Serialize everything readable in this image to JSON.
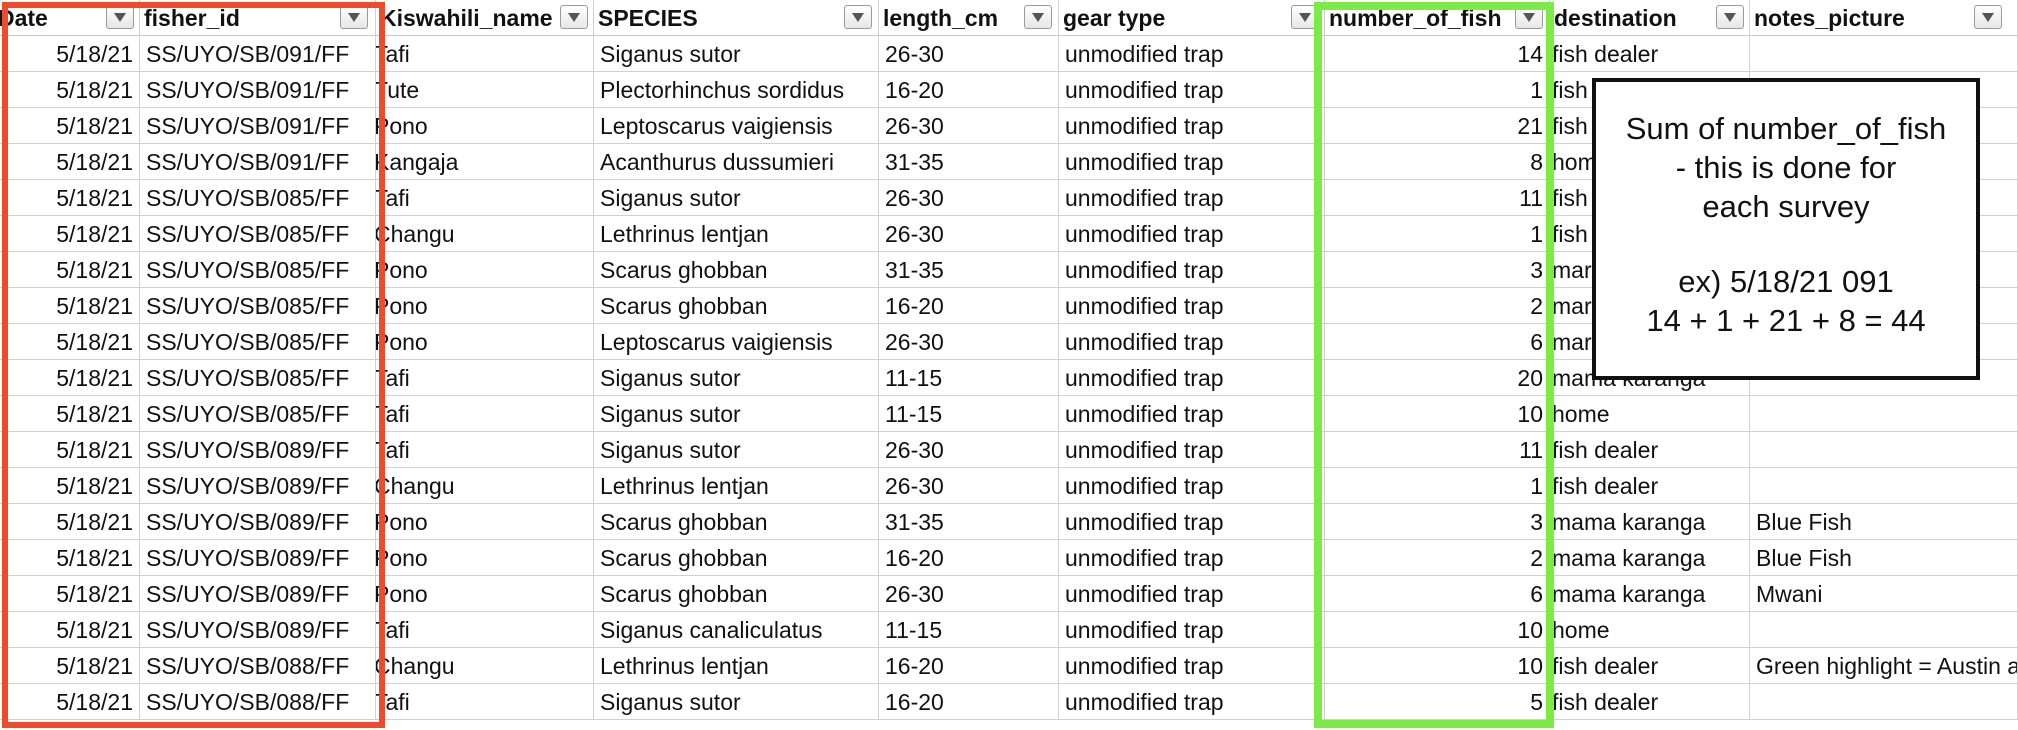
{
  "headers": {
    "date": "Date",
    "fisher_id": "fisher_id",
    "kiswahili": "Kiswahili_name",
    "species": "SPECIES",
    "length": "length_cm",
    "gear": "gear type",
    "number": "number_of_fish",
    "destination": "destination",
    "notes": "notes_picture"
  },
  "rows": [
    {
      "date": "5/18/21",
      "fisher_id": "SS/UYO/SB/091/FF",
      "kiswahili": "Tafi",
      "species": "Siganus sutor",
      "length": "26-30",
      "gear": "unmodified trap",
      "number": "14",
      "destination": "fish dealer",
      "notes": ""
    },
    {
      "date": "5/18/21",
      "fisher_id": "SS/UYO/SB/091/FF",
      "kiswahili": "Tute",
      "species": "Plectorhinchus sordidus",
      "length": "16-20",
      "gear": "unmodified trap",
      "number": "1",
      "destination": "fish",
      "notes": ""
    },
    {
      "date": "5/18/21",
      "fisher_id": "SS/UYO/SB/091/FF",
      "kiswahili": "Pono",
      "species": "Leptoscarus vaigiensis",
      "length": "26-30",
      "gear": "unmodified trap",
      "number": "21",
      "destination": "fish",
      "notes": ""
    },
    {
      "date": "5/18/21",
      "fisher_id": "SS/UYO/SB/091/FF",
      "kiswahili": "Kangaja",
      "species": "Acanthurus dussumieri",
      "length": "31-35",
      "gear": "unmodified trap",
      "number": "8",
      "destination": "hom",
      "notes": ""
    },
    {
      "date": "5/18/21",
      "fisher_id": "SS/UYO/SB/085/FF",
      "kiswahili": "Tafi",
      "species": "Siganus sutor",
      "length": "26-30",
      "gear": "unmodified trap",
      "number": "11",
      "destination": "fish",
      "notes": ""
    },
    {
      "date": "5/18/21",
      "fisher_id": "SS/UYO/SB/085/FF",
      "kiswahili": "Changu",
      "species": "Lethrinus lentjan",
      "length": "26-30",
      "gear": "unmodified trap",
      "number": "1",
      "destination": "fish",
      "notes": ""
    },
    {
      "date": "5/18/21",
      "fisher_id": "SS/UYO/SB/085/FF",
      "kiswahili": "Pono",
      "species": "Scarus ghobban",
      "length": "31-35",
      "gear": "unmodified trap",
      "number": "3",
      "destination": "mar",
      "notes": ""
    },
    {
      "date": "5/18/21",
      "fisher_id": "SS/UYO/SB/085/FF",
      "kiswahili": "Pono",
      "species": "Scarus ghobban",
      "length": "16-20",
      "gear": "unmodified trap",
      "number": "2",
      "destination": "mar",
      "notes": ""
    },
    {
      "date": "5/18/21",
      "fisher_id": "SS/UYO/SB/085/FF",
      "kiswahili": "Pono",
      "species": "Leptoscarus vaigiensis",
      "length": "26-30",
      "gear": "unmodified trap",
      "number": "6",
      "destination": "mar",
      "notes": ""
    },
    {
      "date": "5/18/21",
      "fisher_id": "SS/UYO/SB/085/FF",
      "kiswahili": "Tafi",
      "species": "Siganus sutor",
      "length": "11-15",
      "gear": "unmodified trap",
      "number": "20",
      "destination": "mama karanga",
      "notes": ""
    },
    {
      "date": "5/18/21",
      "fisher_id": "SS/UYO/SB/085/FF",
      "kiswahili": "Tafi",
      "species": "Siganus sutor",
      "length": "11-15",
      "gear": "unmodified trap",
      "number": "10",
      "destination": "home",
      "notes": ""
    },
    {
      "date": "5/18/21",
      "fisher_id": "SS/UYO/SB/089/FF",
      "kiswahili": "Tafi",
      "species": "Siganus sutor",
      "length": "26-30",
      "gear": "unmodified trap",
      "number": "11",
      "destination": "fish dealer",
      "notes": ""
    },
    {
      "date": "5/18/21",
      "fisher_id": "SS/UYO/SB/089/FF",
      "kiswahili": "Changu",
      "species": "Lethrinus lentjan",
      "length": "26-30",
      "gear": "unmodified trap",
      "number": "1",
      "destination": "fish dealer",
      "notes": ""
    },
    {
      "date": "5/18/21",
      "fisher_id": "SS/UYO/SB/089/FF",
      "kiswahili": "Pono",
      "species": "Scarus ghobban",
      "length": "31-35",
      "gear": "unmodified trap",
      "number": "3",
      "destination": "mama karanga",
      "notes": "Blue Fish"
    },
    {
      "date": "5/18/21",
      "fisher_id": "SS/UYO/SB/089/FF",
      "kiswahili": "Pono",
      "species": "Scarus ghobban",
      "length": "16-20",
      "gear": "unmodified trap",
      "number": "2",
      "destination": "mama karanga",
      "notes": "Blue Fish"
    },
    {
      "date": "5/18/21",
      "fisher_id": "SS/UYO/SB/089/FF",
      "kiswahili": "Pono",
      "species": "Scarus ghobban",
      "length": "26-30",
      "gear": "unmodified trap",
      "number": "6",
      "destination": "mama karanga",
      "notes": "Mwani"
    },
    {
      "date": "5/18/21",
      "fisher_id": "SS/UYO/SB/089/FF",
      "kiswahili": "Tafi",
      "species": "Siganus canaliculatus",
      "length": "11-15",
      "gear": "unmodified trap",
      "number": "10",
      "destination": "home",
      "notes": ""
    },
    {
      "date": "5/18/21",
      "fisher_id": "SS/UYO/SB/088/FF",
      "kiswahili": "Changu",
      "species": "Lethrinus lentjan",
      "length": "16-20",
      "gear": "unmodified trap",
      "number": "10",
      "destination": "fish dealer",
      "notes": "Green highlight = Austin a"
    },
    {
      "date": "5/18/21",
      "fisher_id": "SS/UYO/SB/088/FF",
      "kiswahili": "Tafi",
      "species": "Siganus sutor",
      "length": "16-20",
      "gear": "unmodified trap",
      "number": "5",
      "destination": "fish dealer",
      "notes": ""
    }
  ],
  "annotation": {
    "line1": "Sum of number_of_fish",
    "line2": "- this is done for",
    "line3": "each survey",
    "line4": "ex) 5/18/21 091",
    "line5": "14 + 1 + 21 + 8 = 44"
  },
  "highlight_colors": {
    "date_fisher_box": "#ee4a2c",
    "number_box": "#7ceb48"
  }
}
